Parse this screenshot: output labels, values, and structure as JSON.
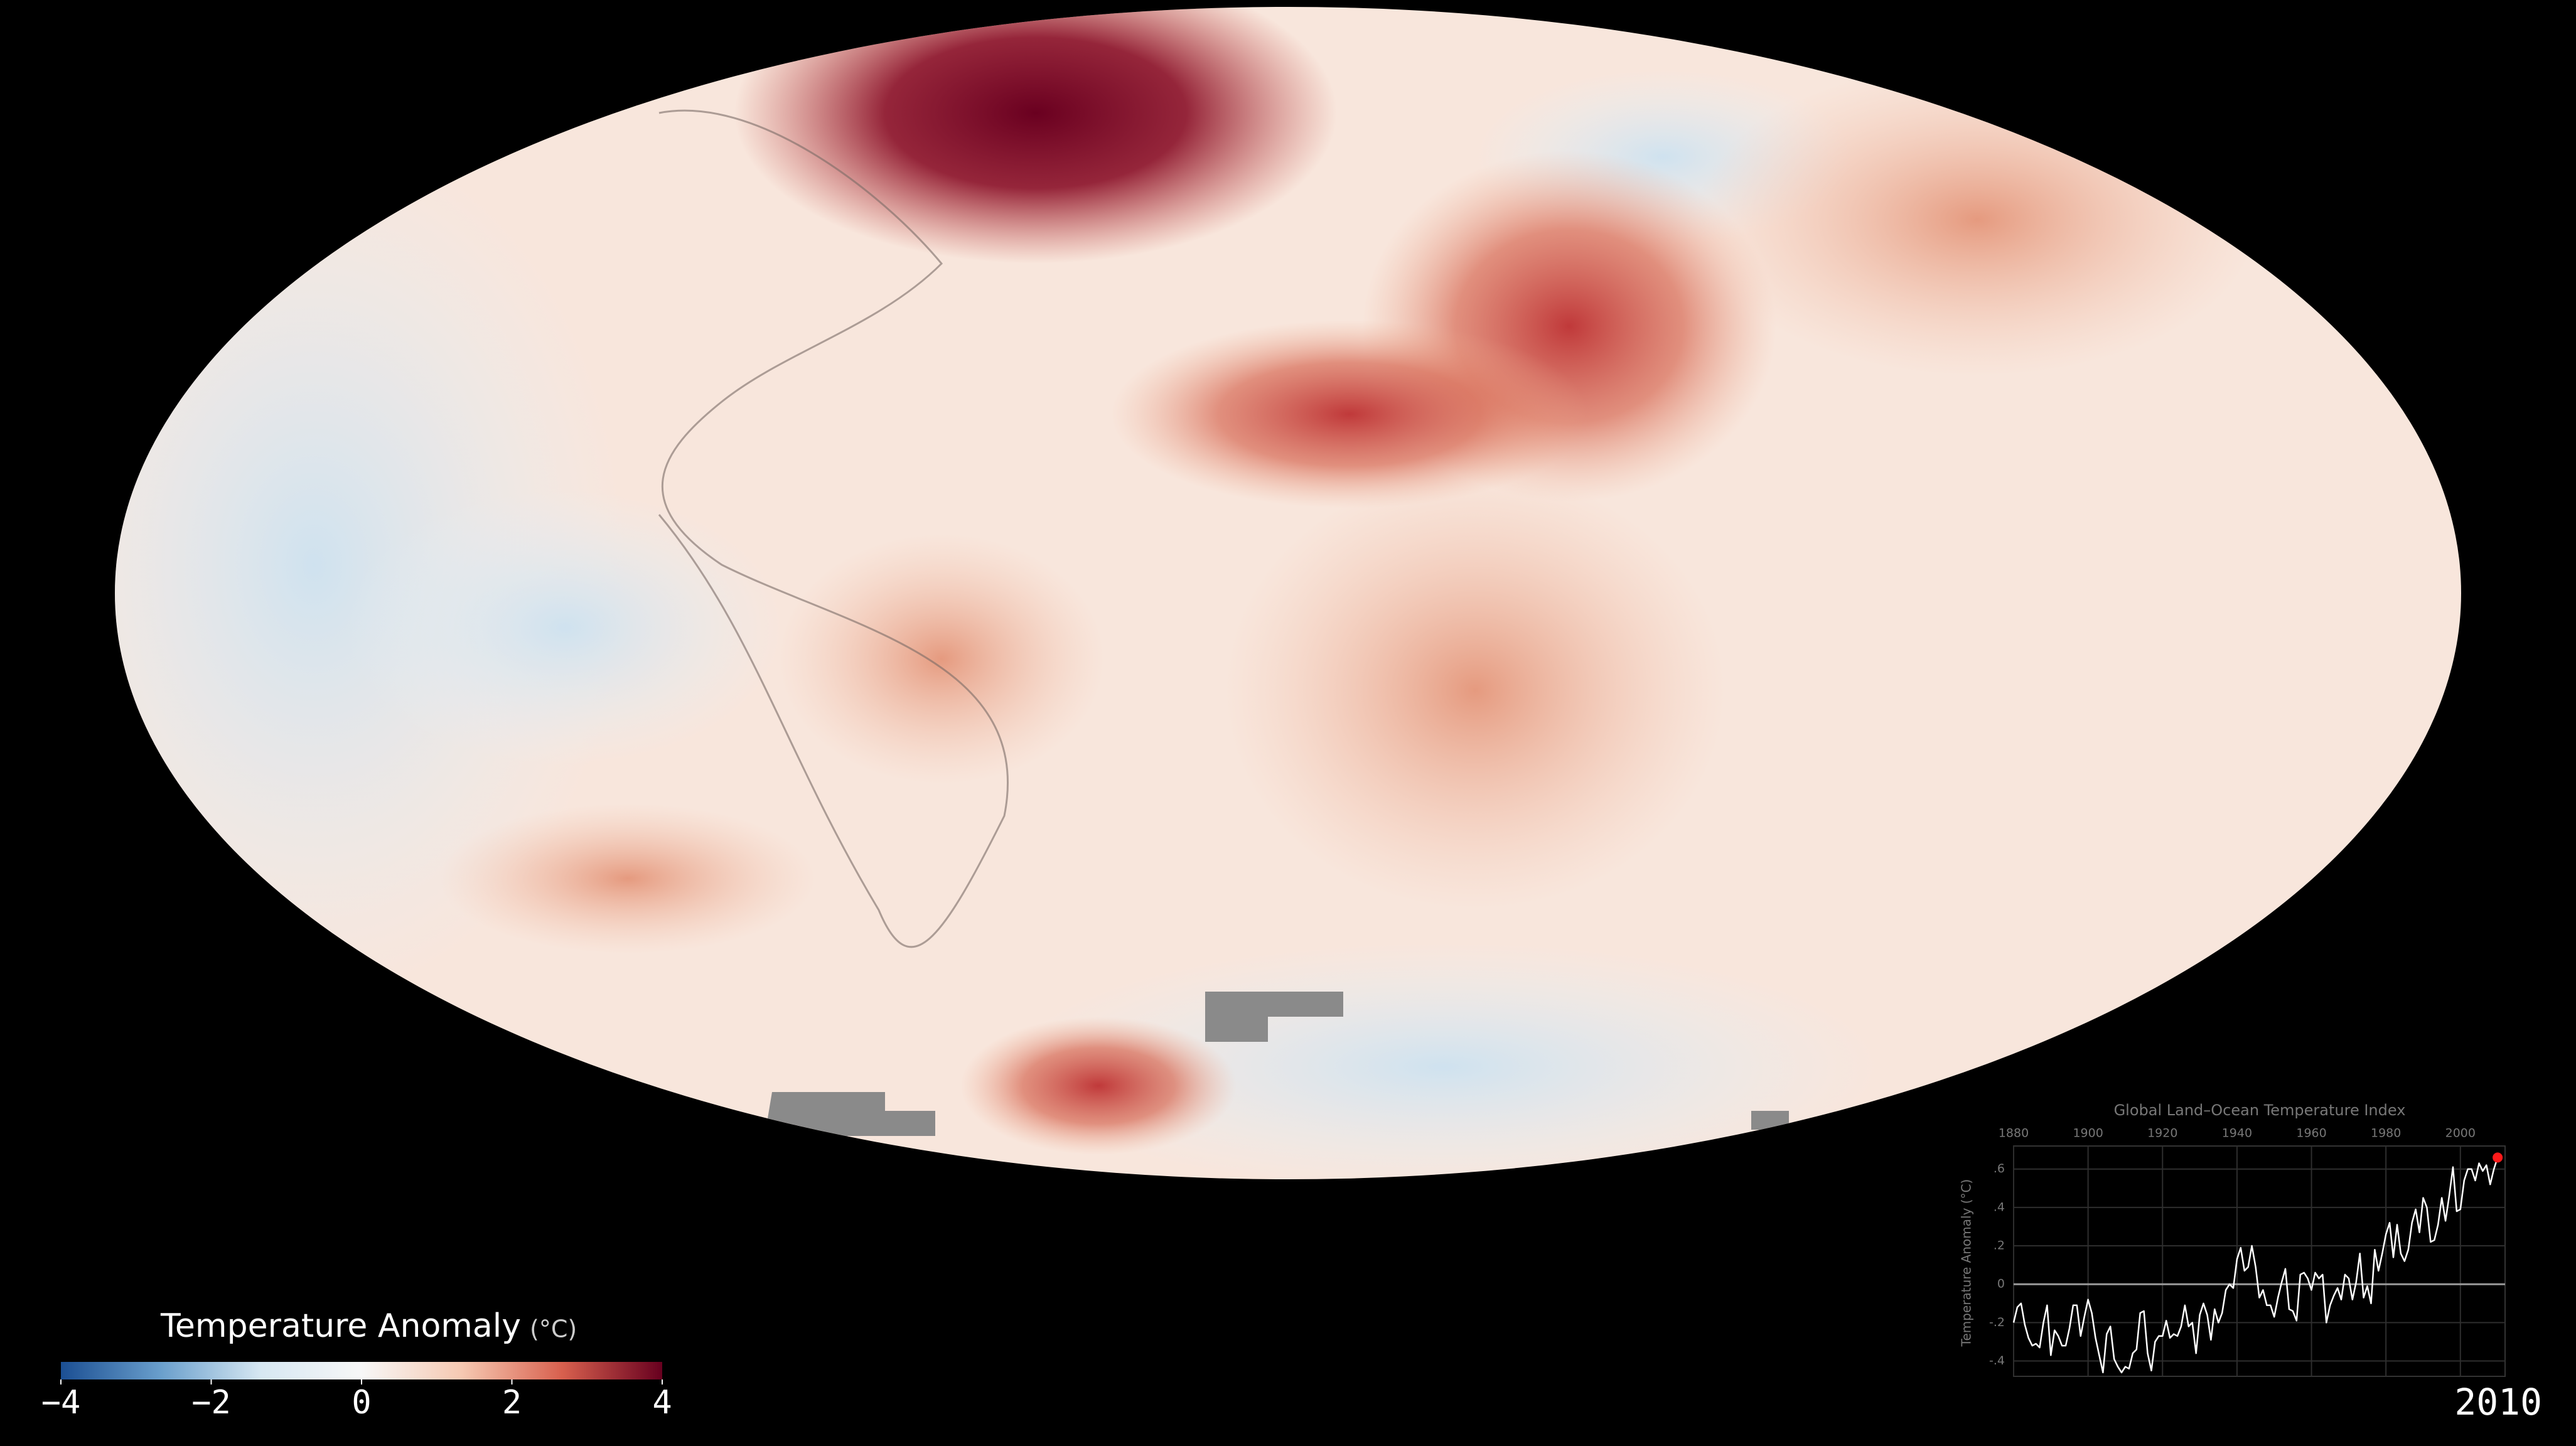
{
  "year": "2010",
  "colorbar": {
    "title": "Temperature Anomaly",
    "unit": "(°C)",
    "lim": [
      -4,
      4
    ],
    "ticks": [
      {
        "value": -4,
        "label": "−4"
      },
      {
        "value": -2,
        "label": "−2"
      },
      0,
      2,
      4
    ],
    "colors": [
      "#1b4f93",
      "#6a9fcc",
      "#d7e8f2",
      "#f7f7f7",
      "#f6c9b2",
      "#d8604e",
      "#67001f"
    ]
  },
  "chart_data": {
    "type": "line",
    "title": "Global Land–Ocean Temperature Index",
    "y_label": "Temperature Anomaly (°C)",
    "x": [
      1880,
      1881,
      1882,
      1883,
      1884,
      1885,
      1886,
      1887,
      1888,
      1889,
      1890,
      1891,
      1892,
      1893,
      1894,
      1895,
      1896,
      1897,
      1898,
      1899,
      1900,
      1901,
      1902,
      1903,
      1904,
      1905,
      1906,
      1907,
      1908,
      1909,
      1910,
      1911,
      1912,
      1913,
      1914,
      1915,
      1916,
      1917,
      1918,
      1919,
      1920,
      1921,
      1922,
      1923,
      1924,
      1925,
      1926,
      1927,
      1928,
      1929,
      1930,
      1931,
      1932,
      1933,
      1934,
      1935,
      1936,
      1937,
      1938,
      1939,
      1940,
      1941,
      1942,
      1943,
      1944,
      1945,
      1946,
      1947,
      1948,
      1949,
      1950,
      1951,
      1952,
      1953,
      1954,
      1955,
      1956,
      1957,
      1958,
      1959,
      1960,
      1961,
      1962,
      1963,
      1964,
      1965,
      1966,
      1967,
      1968,
      1969,
      1970,
      1971,
      1972,
      1973,
      1974,
      1975,
      1976,
      1977,
      1978,
      1979,
      1980,
      1981,
      1982,
      1983,
      1984,
      1985,
      1986,
      1987,
      1988,
      1989,
      1990,
      1991,
      1992,
      1993,
      1994,
      1995,
      1996,
      1997,
      1998,
      1999,
      2000,
      2001,
      2002,
      2003,
      2004,
      2005,
      2006,
      2007,
      2008,
      2009,
      2010
    ],
    "series": [
      {
        "color": "#ffffff",
        "values": [
          -0.2,
          -0.12,
          -0.1,
          -0.21,
          -0.28,
          -0.32,
          -0.31,
          -0.33,
          -0.2,
          -0.11,
          -0.37,
          -0.24,
          -0.27,
          -0.32,
          -0.32,
          -0.23,
          -0.11,
          -0.11,
          -0.27,
          -0.17,
          -0.08,
          -0.15,
          -0.28,
          -0.37,
          -0.46,
          -0.26,
          -0.22,
          -0.39,
          -0.43,
          -0.46,
          -0.43,
          -0.44,
          -0.36,
          -0.34,
          -0.15,
          -0.14,
          -0.36,
          -0.45,
          -0.3,
          -0.27,
          -0.27,
          -0.19,
          -0.28,
          -0.26,
          -0.27,
          -0.22,
          -0.11,
          -0.22,
          -0.2,
          -0.36,
          -0.16,
          -0.1,
          -0.16,
          -0.29,
          -0.13,
          -0.2,
          -0.15,
          -0.03,
          0.0,
          -0.02,
          0.13,
          0.19,
          0.07,
          0.09,
          0.2,
          0.09,
          -0.07,
          -0.03,
          -0.11,
          -0.11,
          -0.17,
          -0.07,
          0.01,
          0.08,
          -0.13,
          -0.14,
          -0.19,
          0.05,
          0.06,
          0.03,
          -0.03,
          0.06,
          0.03,
          0.05,
          -0.2,
          -0.11,
          -0.06,
          -0.02,
          -0.08,
          0.05,
          0.03,
          -0.08,
          0.01,
          0.16,
          -0.07,
          -0.01,
          -0.1,
          0.18,
          0.07,
          0.16,
          0.26,
          0.32,
          0.14,
          0.31,
          0.16,
          0.12,
          0.18,
          0.32,
          0.39,
          0.27,
          0.45,
          0.4,
          0.22,
          0.23,
          0.31,
          0.45,
          0.33,
          0.46,
          0.61,
          0.38,
          0.39,
          0.54,
          0.6,
          0.6,
          0.54,
          0.63,
          0.59,
          0.62,
          0.52,
          0.6,
          0.66
        ]
      }
    ],
    "highlight_color": "#ff1a1a",
    "xlim": [
      1880,
      2012
    ],
    "ylim": [
      -0.48,
      0.72
    ],
    "xticks": [
      1880,
      1900,
      1920,
      1940,
      1960,
      1980,
      2000
    ],
    "yticks": [
      {
        "value": 0.6,
        "label": ".6"
      },
      {
        "value": 0.4,
        "label": ".4"
      },
      {
        "value": 0.2,
        "label": ".2"
      },
      0,
      {
        "value": -0.2,
        "label": "-.2"
      },
      {
        "value": -0.4,
        "label": "-.4"
      }
    ],
    "grid": true
  }
}
